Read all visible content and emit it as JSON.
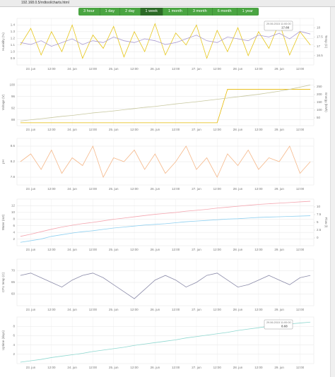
{
  "header": {
    "url": "192.168.0.5/rrdtool/charts.html",
    "buttons": [
      "3 hour",
      "1 day",
      "2 day",
      "1 week",
      "1 month",
      "3 month",
      "6 month",
      "1 year"
    ],
    "active": 3
  },
  "chart_data": [
    {
      "type": "line",
      "ylabel": "Humidity (%)",
      "y2label": "Temp (C)",
      "x": [
        -6,
        0,
        6,
        12,
        18,
        24,
        30,
        36,
        42,
        48,
        54,
        60,
        66,
        72,
        78,
        84,
        90,
        96,
        102,
        108,
        114,
        120,
        126,
        132,
        138,
        144,
        150,
        156,
        162
      ],
      "xlim": [
        -8,
        164
      ],
      "xticks": [
        {
          "value": 0,
          "label": "23. jun"
        },
        {
          "value": 12,
          "label": "12:00"
        },
        {
          "value": 24,
          "label": "24. jun"
        },
        {
          "value": 36,
          "label": "12:00"
        },
        {
          "value": 48,
          "label": "25. jun"
        },
        {
          "value": 60,
          "label": "12:00"
        },
        {
          "value": 72,
          "label": "26. jun"
        },
        {
          "value": 84,
          "label": "12:00"
        },
        {
          "value": 96,
          "label": "27. jun"
        },
        {
          "value": 108,
          "label": "12:00"
        },
        {
          "value": 120,
          "label": "28. jun"
        },
        {
          "value": 132,
          "label": "12:00"
        },
        {
          "value": 144,
          "label": "29. jun"
        },
        {
          "value": 156,
          "label": "12:00"
        }
      ],
      "ylim": [
        0.8,
        1.5
      ],
      "yticks": [
        0.9,
        {
          "value": 1,
          "label": "1.0"
        },
        1.1,
        1.2,
        1.3,
        1.4
      ],
      "y2lim": [
        16,
        18.5
      ],
      "y2ticks": [
        16.5,
        17,
        17.5,
        18
      ],
      "series": [
        {
          "name": "Humidity",
          "color": "#e6c619",
          "values": [
            1.1,
            1.35,
            0.95,
            1.3,
            1.0,
            1.4,
            0.9,
            1.25,
            1.05,
            1.38,
            0.92,
            1.3,
            1.0,
            1.42,
            0.95,
            1.28,
            1.1,
            1.4,
            0.9,
            1.32,
            1.0,
            1.36,
            0.94,
            1.3,
            1.05,
            1.44,
            0.95,
            1.3,
            1.1
          ]
        },
        {
          "name": "Temp",
          "color": "#a99ad0",
          "axis": "y2",
          "values": [
            17.2,
            17.1,
            17.3,
            17.0,
            17.2,
            17.4,
            17.1,
            17.3,
            17.2,
            17.5,
            17.3,
            17.2,
            17.4,
            17.3,
            17.1,
            17.2,
            17.4,
            17.6,
            17.3,
            17.2,
            17.5,
            17.4,
            17.3,
            17.6,
            17.5,
            17.7,
            17.4,
            17.8,
            17.66
          ]
        }
      ],
      "annotation": {
        "date": "29.06.2015 11:00:00",
        "value": "17.66"
      }
    },
    {
      "type": "line",
      "ylabel": "Voltage (V)",
      "y2label": "Energy (kWh)",
      "x": [
        -6,
        0,
        6,
        12,
        18,
        24,
        30,
        36,
        42,
        48,
        54,
        60,
        66,
        72,
        78,
        84,
        90,
        96,
        102,
        108,
        114,
        120,
        126,
        132,
        138,
        144,
        150,
        156,
        162
      ],
      "xlim": [
        -8,
        164
      ],
      "xticks": [
        {
          "value": 0,
          "label": "23. jun"
        },
        {
          "value": 12,
          "label": "12:00"
        },
        {
          "value": 24,
          "label": "24. jun"
        },
        {
          "value": 36,
          "label": "12:00"
        },
        {
          "value": 48,
          "label": "25. jun"
        },
        {
          "value": 60,
          "label": "12:00"
        },
        {
          "value": 72,
          "label": "26. jun"
        },
        {
          "value": 84,
          "label": "12:00"
        },
        {
          "value": 96,
          "label": "27. jun"
        },
        {
          "value": 108,
          "label": "12:00"
        },
        {
          "value": 120,
          "label": "28. jun"
        },
        {
          "value": 132,
          "label": "12:00"
        },
        {
          "value": 144,
          "label": "29. jun"
        },
        {
          "value": 156,
          "label": "12:00"
        }
      ],
      "ylim": [
        86,
        102
      ],
      "yticks": [
        88,
        92,
        96,
        100
      ],
      "y2lim": [
        0,
        300
      ],
      "y2ticks": [
        50,
        100,
        150,
        200,
        250
      ],
      "series": [
        {
          "name": "Voltage",
          "color": "#e6b800",
          "values": [
            87,
            87,
            87,
            87,
            87,
            87,
            87,
            87,
            87,
            87,
            87,
            87,
            87,
            87,
            87,
            87,
            87,
            87,
            87,
            87,
            98.5,
            98.5,
            98.5,
            98.5,
            98.5,
            98.5,
            98.5,
            98.5,
            98.5
          ]
        },
        {
          "name": "Energy",
          "color": "#c8c8a0",
          "axis": "y2",
          "values": [
            30,
            38,
            45,
            52,
            60,
            66,
            74,
            82,
            88,
            95,
            103,
            110,
            118,
            124,
            132,
            140,
            147,
            154,
            162,
            170,
            178,
            186,
            194,
            202,
            212,
            222,
            234,
            248,
            262
          ]
        }
      ]
    },
    {
      "type": "line",
      "ylabel": "pH",
      "x": [
        -6,
        0,
        6,
        12,
        18,
        24,
        30,
        36,
        42,
        48,
        54,
        60,
        66,
        72,
        78,
        84,
        90,
        96,
        102,
        108,
        114,
        120,
        126,
        132,
        138,
        144,
        150,
        156,
        162
      ],
      "xlim": [
        -8,
        164
      ],
      "xticks": [
        {
          "value": 0,
          "label": "23. jun"
        },
        {
          "value": 12,
          "label": "12:00"
        },
        {
          "value": 24,
          "label": "24. jun"
        },
        {
          "value": 36,
          "label": "12:00"
        },
        {
          "value": 48,
          "label": "25. jun"
        },
        {
          "value": 60,
          "label": "12:00"
        },
        {
          "value": 72,
          "label": "26. jun"
        },
        {
          "value": 84,
          "label": "12:00"
        },
        {
          "value": 96,
          "label": "27. jun"
        },
        {
          "value": 108,
          "label": "12:00"
        },
        {
          "value": 120,
          "label": "28. jun"
        },
        {
          "value": 132,
          "label": "12:00"
        },
        {
          "value": 144,
          "label": "29. jun"
        },
        {
          "value": 156,
          "label": "12:00"
        }
      ],
      "ylim": [
        7.6,
        8.8
      ],
      "yticks": [
        7.8,
        8.2,
        8.6
      ],
      "series": [
        {
          "name": "pH",
          "color": "#f5b88a",
          "values": [
            8.2,
            8.4,
            8.0,
            8.5,
            7.9,
            8.3,
            8.1,
            8.6,
            7.8,
            8.3,
            8.2,
            8.5,
            8.0,
            8.4,
            7.9,
            8.2,
            8.6,
            8.0,
            8.3,
            7.8,
            8.4,
            8.1,
            8.5,
            8.0,
            8.3,
            8.2,
            8.6,
            7.9,
            8.2
          ]
        }
      ]
    },
    {
      "type": "line",
      "ylabel": "Water (m3)",
      "y2label": "Flow (l)",
      "x": [
        -6,
        0,
        6,
        12,
        18,
        24,
        30,
        36,
        42,
        48,
        54,
        60,
        66,
        72,
        78,
        84,
        90,
        96,
        102,
        108,
        114,
        120,
        126,
        132,
        138,
        144,
        150,
        156,
        162
      ],
      "xlim": [
        -8,
        164
      ],
      "xticks": [
        {
          "value": 0,
          "label": "23. jun"
        },
        {
          "value": 12,
          "label": "12:00"
        },
        {
          "value": 24,
          "label": "24. jun"
        },
        {
          "value": 36,
          "label": "12:00"
        },
        {
          "value": 48,
          "label": "25. jun"
        },
        {
          "value": 60,
          "label": "12:00"
        },
        {
          "value": 72,
          "label": "26. jun"
        },
        {
          "value": 84,
          "label": "12:00"
        },
        {
          "value": 96,
          "label": "27. jun"
        },
        {
          "value": 108,
          "label": "12:00"
        },
        {
          "value": 120,
          "label": "28. jun"
        },
        {
          "value": 132,
          "label": "12:00"
        },
        {
          "value": 144,
          "label": "29. jun"
        },
        {
          "value": 156,
          "label": "12:00"
        }
      ],
      "ylim": [
        0,
        14
      ],
      "yticks": [
        2,
        4,
        6,
        8,
        10,
        12
      ],
      "y2lim": [
        -2.5,
        12.5
      ],
      "y2ticks": [
        0,
        2.5,
        5,
        7.5,
        10
      ],
      "series": [
        {
          "name": "Water",
          "color": "#8fd0f0",
          "values": [
            1,
            1.5,
            2,
            2.8,
            3.3,
            3.8,
            4.2,
            4.5,
            4.9,
            5.3,
            5.6,
            5.9,
            6.2,
            6.4,
            6.6,
            6.9,
            7.2,
            7.4,
            7.6,
            7.8,
            8.0,
            8.1,
            8.3,
            8.5,
            8.6,
            8.7,
            8.8,
            8.9,
            9.0
          ]
        },
        {
          "name": "Flow",
          "color": "#f4a6b0",
          "axis": "y2",
          "values": [
            0.5,
            1.2,
            2.0,
            2.8,
            3.5,
            4.1,
            4.6,
            5.0,
            5.5,
            6.0,
            6.4,
            6.8,
            7.2,
            7.6,
            7.9,
            8.2,
            8.6,
            8.9,
            9.2,
            9.6,
            9.9,
            10.2,
            10.5,
            10.8,
            11.0,
            11.2,
            11.4,
            11.6,
            11.8
          ]
        }
      ]
    },
    {
      "type": "line",
      "ylabel": "CPU temp (C)",
      "x": [
        -6,
        0,
        6,
        12,
        18,
        24,
        30,
        36,
        42,
        48,
        54,
        60,
        66,
        72,
        78,
        84,
        90,
        96,
        102,
        108,
        114,
        120,
        126,
        132,
        138,
        144,
        150,
        156,
        162
      ],
      "xlim": [
        -8,
        164
      ],
      "xticks": [
        {
          "value": 0,
          "label": "23. jun"
        },
        {
          "value": 12,
          "label": "12:00"
        },
        {
          "value": 24,
          "label": "24. jun"
        },
        {
          "value": 36,
          "label": "12:00"
        },
        {
          "value": 48,
          "label": "25. jun"
        },
        {
          "value": 60,
          "label": "12:00"
        },
        {
          "value": 72,
          "label": "26. jun"
        },
        {
          "value": 84,
          "label": "12:00"
        },
        {
          "value": 96,
          "label": "27. jun"
        },
        {
          "value": 108,
          "label": "12:00"
        },
        {
          "value": 120,
          "label": "28. jun"
        },
        {
          "value": 132,
          "label": "12:00"
        },
        {
          "value": 144,
          "label": "29. jun"
        },
        {
          "value": 156,
          "label": "12:00"
        }
      ],
      "ylim": [
        55,
        75
      ],
      "yticks": [
        60,
        65,
        70
      ],
      "series": [
        {
          "name": "CPU temp",
          "color": "#8a8aa8",
          "values": [
            68,
            69,
            67,
            65,
            63,
            66,
            68,
            69,
            67,
            64,
            61,
            58,
            62,
            66,
            68,
            66,
            63,
            65,
            68,
            69,
            66,
            63,
            64,
            66,
            68,
            66,
            64,
            67,
            68
          ]
        }
      ]
    },
    {
      "type": "line",
      "ylabel": "Uptime (days)",
      "x": [
        -6,
        0,
        6,
        12,
        18,
        24,
        30,
        36,
        42,
        48,
        54,
        60,
        66,
        72,
        78,
        84,
        90,
        96,
        102,
        108,
        114,
        120,
        126,
        132,
        138,
        144,
        150,
        156,
        162
      ],
      "xlim": [
        -8,
        164
      ],
      "xticks": [
        {
          "value": 0,
          "label": "23. jun"
        },
        {
          "value": 12,
          "label": "12:00"
        },
        {
          "value": 24,
          "label": "24. jun"
        },
        {
          "value": 36,
          "label": "12:00"
        },
        {
          "value": 48,
          "label": "25. jun"
        },
        {
          "value": 60,
          "label": "12:00"
        },
        {
          "value": 72,
          "label": "26. jun"
        },
        {
          "value": 84,
          "label": "12:00"
        },
        {
          "value": 96,
          "label": "27. jun"
        },
        {
          "value": 108,
          "label": "12:00"
        },
        {
          "value": 120,
          "label": "28. jun"
        },
        {
          "value": 132,
          "label": "12:00"
        },
        {
          "value": 144,
          "label": "29. jun"
        },
        {
          "value": 156,
          "label": "12:00"
        }
      ],
      "ylim": [
        0,
        10
      ],
      "yticks": [
        2,
        4,
        6,
        8
      ],
      "series": [
        {
          "name": "Uptime",
          "color": "#8fd8d0",
          "values": [
            0.3,
            0.6,
            0.9,
            1.3,
            1.6,
            1.9,
            2.2,
            2.6,
            2.9,
            3.2,
            3.5,
            3.9,
            4.2,
            4.5,
            4.8,
            5.1,
            5.5,
            5.8,
            6.1,
            6.4,
            6.7,
            7.1,
            7.4,
            7.7,
            8.0,
            8.3,
            8.5,
            8.7,
            8.9
          ]
        }
      ],
      "annotation": {
        "date": "29.06.2015 11:00:00",
        "value": "8.68"
      }
    }
  ]
}
